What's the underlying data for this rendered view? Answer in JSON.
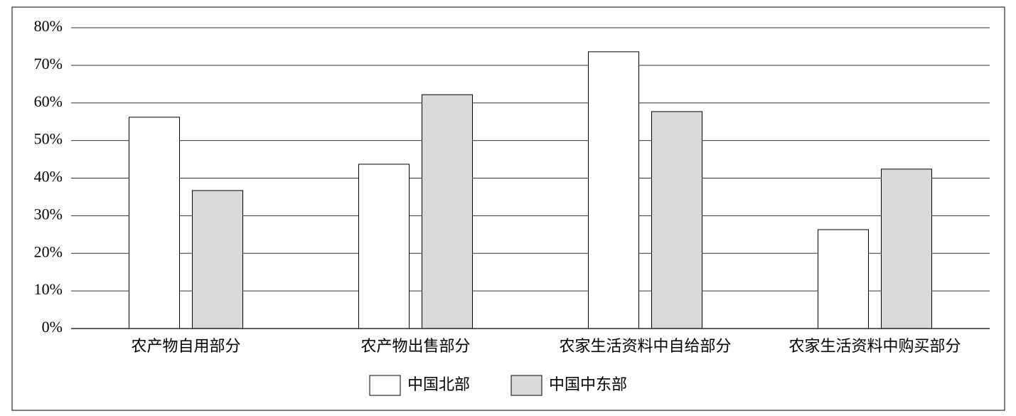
{
  "chart_data": {
    "type": "bar",
    "categories": [
      "农产物自用部分",
      "农产物出售部分",
      "农家生活资料中自给部分",
      "农家生活资料中购买部分"
    ],
    "series": [
      {
        "name": "中国北部",
        "color": "#ffffff",
        "values": [
          56.2,
          43.7,
          73.6,
          26.3
        ]
      },
      {
        "name": "中国中东部",
        "color": "#d9d9d9",
        "values": [
          36.7,
          62.2,
          57.7,
          42.4
        ]
      }
    ],
    "ylim": [
      0,
      80
    ],
    "yticks": [
      {
        "value": 0,
        "label": "0%"
      },
      {
        "value": 10,
        "label": "10%"
      },
      {
        "value": 20,
        "label": "20%"
      },
      {
        "value": 30,
        "label": "30%"
      },
      {
        "value": 40,
        "label": "40%"
      },
      {
        "value": 50,
        "label": "50%"
      },
      {
        "value": 60,
        "label": "60%"
      },
      {
        "value": 70,
        "label": "70%"
      },
      {
        "value": 80,
        "label": "80%"
      }
    ],
    "grid": true,
    "legend": "bottom"
  }
}
